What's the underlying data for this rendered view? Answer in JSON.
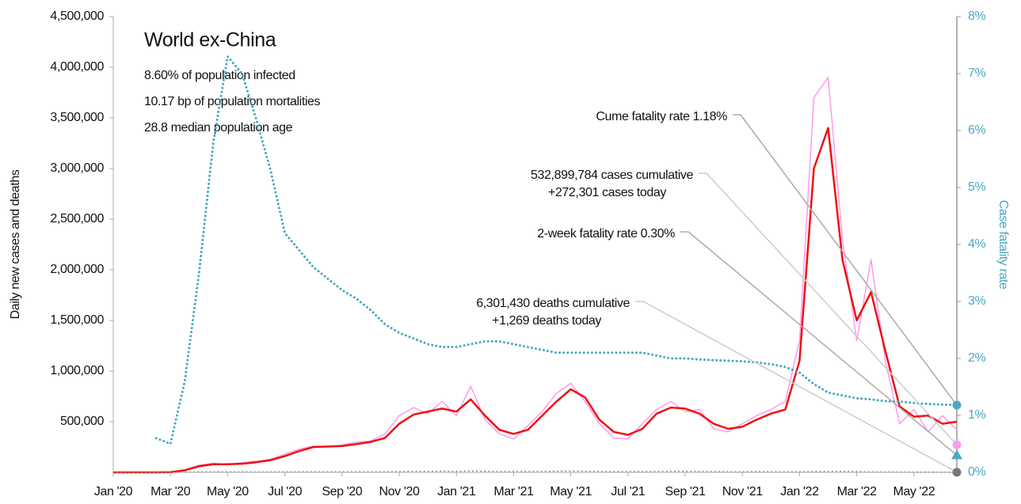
{
  "chart_data": {
    "type": "line",
    "y_label": "Daily new cases and deaths",
    "y2_label": "Case fatality rate",
    "info": {
      "title": "World ex-China",
      "lines": [
        "8.60% of population infected",
        "10.17 bp of population mortalities",
        "28.8 median population age"
      ]
    },
    "categories": [
      "Jan '20",
      null,
      null,
      null,
      "Mar '20",
      null,
      null,
      null,
      "May '20",
      null,
      null,
      null,
      "Jul '20",
      null,
      null,
      null,
      "Sep '20",
      null,
      null,
      null,
      "Nov '20",
      null,
      null,
      null,
      "Jan '21",
      null,
      null,
      null,
      "Mar '21",
      null,
      null,
      null,
      "May '21",
      null,
      null,
      null,
      "Jul '21",
      null,
      null,
      null,
      "Sep '21",
      null,
      null,
      null,
      "Nov '21",
      null,
      null,
      null,
      "Jan '22",
      null,
      null,
      null,
      "Mar '22",
      null,
      null,
      null,
      "May '22",
      null,
      null,
      null
    ],
    "series": [
      {
        "color": "#ff99ee",
        "style": "solid",
        "width": 1.5,
        "values": [
          0,
          0,
          0,
          0,
          3000,
          25000,
          70000,
          90000,
          75000,
          95000,
          110000,
          130000,
          180000,
          230000,
          260000,
          250000,
          270000,
          300000,
          310000,
          380000,
          560000,
          640000,
          580000,
          700000,
          560000,
          850000,
          520000,
          380000,
          330000,
          460000,
          600000,
          780000,
          880000,
          700000,
          480000,
          340000,
          330000,
          480000,
          620000,
          700000,
          600000,
          620000,
          430000,
          400000,
          480000,
          560000,
          620000,
          700000,
          1300000,
          3700000,
          3900000,
          2300000,
          1300000,
          2100000,
          1100000,
          480000,
          620000,
          400000,
          560000,
          420000
        ]
      },
      {
        "color": "#ee1111",
        "style": "solid",
        "width": 2.5,
        "values": [
          0,
          0,
          0,
          0,
          2000,
          20000,
          60000,
          80000,
          80000,
          85000,
          100000,
          120000,
          160000,
          210000,
          250000,
          255000,
          260000,
          280000,
          300000,
          340000,
          480000,
          570000,
          600000,
          630000,
          600000,
          720000,
          560000,
          420000,
          380000,
          420000,
          560000,
          700000,
          820000,
          740000,
          520000,
          400000,
          370000,
          430000,
          580000,
          640000,
          630000,
          580000,
          480000,
          430000,
          450000,
          520000,
          580000,
          620000,
          1100000,
          3000000,
          3400000,
          2100000,
          1500000,
          1780000,
          1200000,
          650000,
          550000,
          560000,
          480000,
          500000
        ]
      },
      {
        "color": "#999999",
        "style": "dotted",
        "width": 2,
        "values": [
          0,
          0,
          0,
          0,
          100,
          2000,
          6000,
          6500,
          5000,
          4500,
          4000,
          4500,
          5000,
          5500,
          5500,
          5500,
          5200,
          5000,
          5000,
          6000,
          8000,
          10000,
          11000,
          11500,
          12000,
          13000,
          11000,
          8500,
          8000,
          8500,
          10000,
          12000,
          13000,
          11500,
          9000,
          7500,
          7000,
          7500,
          9000,
          10000,
          10000,
          9000,
          7500,
          6500,
          6500,
          7000,
          6500,
          6000,
          5500,
          7000,
          9500,
          10000,
          7500,
          5000,
          4000,
          3000,
          2500,
          2000,
          1800,
          1500
        ]
      },
      {
        "color": "#4aa8c0",
        "style": "dotted",
        "width": 3,
        "axis": "y2",
        "values": [
          null,
          null,
          null,
          0.6,
          0.5,
          1.6,
          3.5,
          5.8,
          7.3,
          7.0,
          6.2,
          5.3,
          4.2,
          3.9,
          3.6,
          3.4,
          3.2,
          3.05,
          2.85,
          2.6,
          2.45,
          2.35,
          2.25,
          2.2,
          2.2,
          2.25,
          2.3,
          2.3,
          2.25,
          2.2,
          2.15,
          2.1,
          2.1,
          2.1,
          2.1,
          2.1,
          2.1,
          2.1,
          2.05,
          2.0,
          2.0,
          1.98,
          1.97,
          1.96,
          1.95,
          1.93,
          1.9,
          1.85,
          1.75,
          1.55,
          1.4,
          1.35,
          1.3,
          1.28,
          1.25,
          1.24,
          1.22,
          1.2,
          1.19,
          1.18
        ]
      }
    ],
    "ylim": [
      0,
      4500000
    ],
    "yticks": [
      {
        "value": 500000,
        "label": "500,000"
      },
      {
        "value": 1000000,
        "label": "1,000,000"
      },
      {
        "value": 1500000,
        "label": "1,500,000"
      },
      {
        "value": 2000000,
        "label": "2,000,000"
      },
      {
        "value": 2500000,
        "label": "2,500,000"
      },
      {
        "value": 3000000,
        "label": "3,000,000"
      },
      {
        "value": 3500000,
        "label": "3,500,000"
      },
      {
        "value": 4000000,
        "label": "4,000,000"
      },
      {
        "value": 4500000,
        "label": "4,500,000"
      }
    ],
    "y2lim": [
      0,
      8
    ],
    "y2ticks": [
      {
        "value": 0,
        "label": "0%"
      },
      {
        "value": 1,
        "label": "1%"
      },
      {
        "value": 2,
        "label": "2%"
      },
      {
        "value": 3,
        "label": "3%"
      },
      {
        "value": 4,
        "label": "4%"
      },
      {
        "value": 5,
        "label": "5%"
      },
      {
        "value": 6,
        "label": "6%"
      },
      {
        "value": 7,
        "label": "7%"
      },
      {
        "value": 8,
        "label": "8%"
      }
    ],
    "annotations": [
      {
        "lines": [
          "Cume fatality rate 1.18%"
        ]
      },
      {
        "lines": [
          "532,899,784 cases cumulative",
          "+272,301 cases today"
        ]
      },
      {
        "lines": [
          "2-week fatality rate 0.30%"
        ]
      },
      {
        "lines": [
          "6,301,430 deaths cumulative",
          "+1,269 deaths today"
        ]
      }
    ],
    "end_markers": [
      {
        "value": 1.18,
        "axis": "y2",
        "shape": "circle",
        "color": "#4aa8c0"
      },
      {
        "value": 272301,
        "shape": "circle",
        "color": "#ff99ee"
      },
      {
        "value": 0.3,
        "axis": "y2",
        "shape": "triangle",
        "color": "#4aa8c0"
      },
      {
        "value": 1269,
        "shape": "circle",
        "color": "#777777"
      }
    ]
  }
}
